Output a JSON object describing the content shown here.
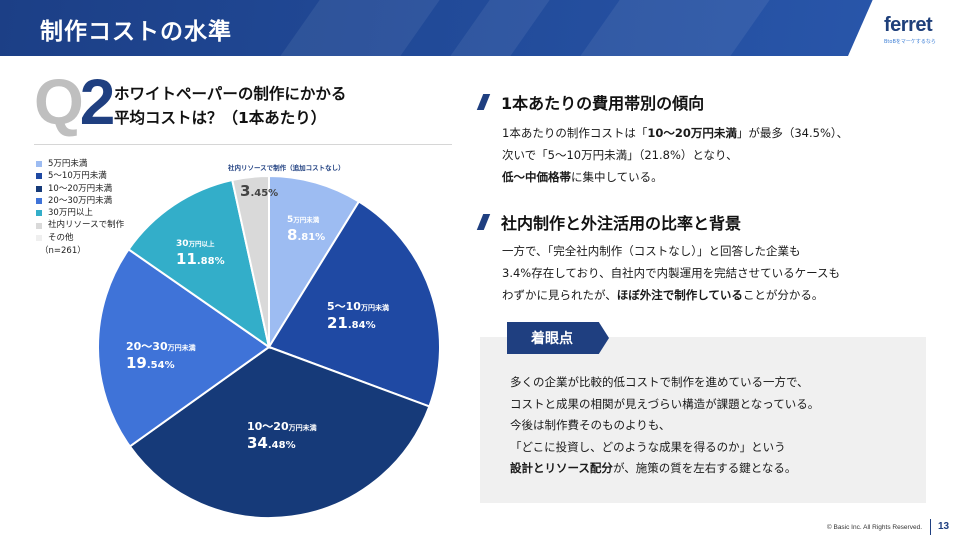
{
  "header": {
    "title": "制作コストの水準"
  },
  "logo": {
    "text": "ferret",
    "sub": "BtoBをマーケするなら"
  },
  "question": {
    "q_letter": "Q",
    "q_number": "2",
    "line1": "ホワイトペーパーの制作にかかる",
    "line2": "平均コストは？（1本あたり）"
  },
  "legend": {
    "items": [
      "5万円未満",
      "5～10万円未満",
      "10～20万円未満",
      "20～30万円未満",
      "30万円以上",
      "社内リソースで制作",
      "その他"
    ],
    "n": "（n=261）"
  },
  "chart_data": {
    "type": "pie",
    "title": "",
    "start": "top",
    "direction": "clockwise",
    "slices": [
      {
        "name": "5万円未満",
        "label_main": "5",
        "label_unit": "万円未満",
        "value": 8.81,
        "value_text": "8.81%",
        "color": "#9dbcf2"
      },
      {
        "name": "5～10万円未満",
        "label_main": "5～10",
        "label_unit": "万円未満",
        "value": 21.84,
        "value_text": "21.84%",
        "color": "#1f49a3"
      },
      {
        "name": "10～20万円未満",
        "label_main": "10～20",
        "label_unit": "万円未満",
        "value": 34.48,
        "value_text": "34.48%",
        "color": "#163a79"
      },
      {
        "name": "20～30万円未満",
        "label_main": "20～30",
        "label_unit": "万円未満",
        "value": 19.54,
        "value_text": "19.54%",
        "color": "#3f73d8"
      },
      {
        "name": "30万円以上",
        "label_main": "30",
        "label_unit": "万円以上",
        "value": 11.88,
        "value_text": "11.88%",
        "color": "#33aec9"
      },
      {
        "name": "社内リソースで制作",
        "label_main": "",
        "label_unit": "",
        "value": 3.45,
        "value_text": "3.45%",
        "color": "#d9d9d9"
      }
    ],
    "callout": "社内リソースで制作（追加コストなし）"
  },
  "section1": {
    "title": "1本あたりの費用帯別の傾向",
    "l1a": "1本あたりの制作コストは「",
    "l1b": "10～20万円未満",
    "l1c": "」が最多（34.5%）、",
    "l2": "次いで「5～10万円未満」（21.8%）となり、",
    "l3a": "低～中価格帯",
    "l3b": "に集中している。"
  },
  "section2": {
    "title": "社内制作と外注活用の比率と背景",
    "l1": "一方で、「完全社内制作（コストなし）」と回答した企業も",
    "l2": "3.4%存在しており、自社内で内製運用を完結させているケースも",
    "l3a": "わずかに見られたが、",
    "l3b": "ほぼ外注で制作している",
    "l3c": "ことが分かる。"
  },
  "note": {
    "tag": "着眼点",
    "l1": "多くの企業が比較的低コストで制作を進めている一方で、",
    "l2": "コストと成果の相関が見えづらい構造が課題となっている。",
    "l3": "今後は制作費そのものよりも、",
    "l4": "「どこに投資し、どのような成果を得るのか」という",
    "l5a": "設計とリソース配分",
    "l5b": "が、施策の質を左右する鍵となる。"
  },
  "footer": {
    "copyright": "© Basic Inc. All Rights Reserved.",
    "page": "13"
  }
}
